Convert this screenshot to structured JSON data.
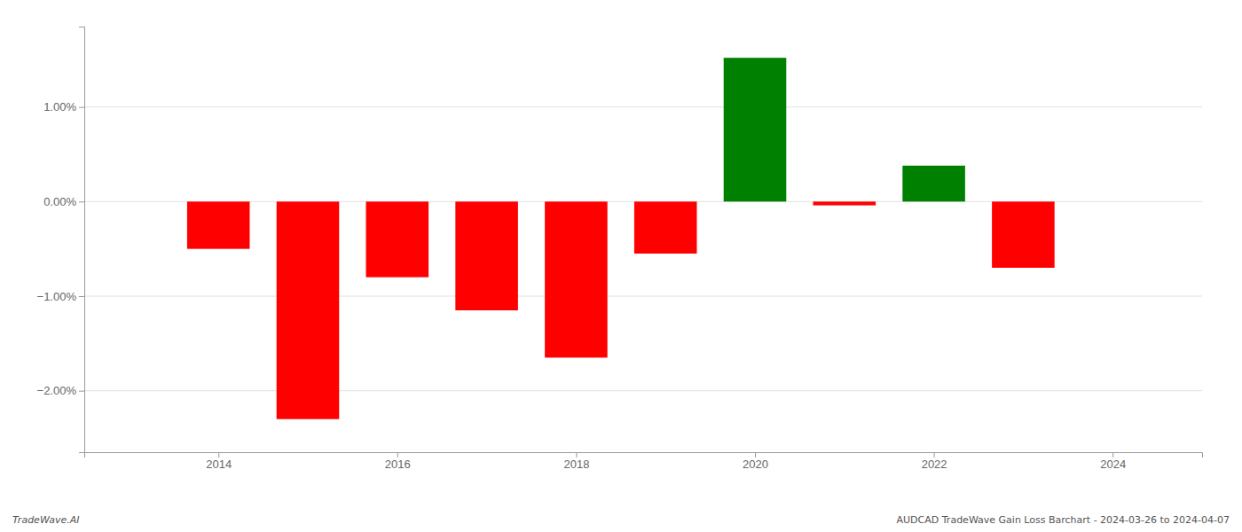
{
  "chart_data": {
    "type": "bar",
    "x": [
      2014,
      2015,
      2016,
      2017,
      2018,
      2019,
      2020,
      2021,
      2022,
      2023
    ],
    "values": [
      -0.5,
      -2.3,
      -0.8,
      -1.15,
      -1.65,
      -0.55,
      1.52,
      -0.04,
      0.38,
      -0.7
    ],
    "colors": [
      "#ff0000",
      "#ff0000",
      "#ff0000",
      "#ff0000",
      "#ff0000",
      "#ff0000",
      "#008000",
      "#ff0000",
      "#008000",
      "#ff0000"
    ],
    "xlim": [
      2012.5,
      2025.0
    ],
    "ylim": [
      -2.65,
      1.85
    ],
    "xticks": [
      2014,
      2016,
      2018,
      2020,
      2022,
      2024
    ],
    "yticks": [
      {
        "value": -2.0,
        "label": "−2.00%"
      },
      {
        "value": -1.0,
        "label": "−1.00%"
      },
      {
        "value": 0.0,
        "label": "0.00%"
      },
      {
        "value": 1.0,
        "label": "1.00%"
      }
    ],
    "grid": true,
    "annotations": [
      "TradeWave.AI",
      "AUDCAD TradeWave Gain Loss Barchart - 2024-03-26 to 2024-04-07"
    ]
  }
}
